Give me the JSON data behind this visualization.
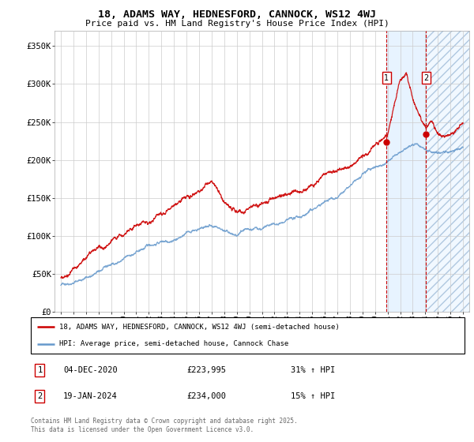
{
  "title_line1": "18, ADAMS WAY, HEDNESFORD, CANNOCK, WS12 4WJ",
  "title_line2": "Price paid vs. HM Land Registry's House Price Index (HPI)",
  "ylabel_ticks": [
    "£0",
    "£50K",
    "£100K",
    "£150K",
    "£200K",
    "£250K",
    "£300K",
    "£350K"
  ],
  "ytick_vals": [
    0,
    50000,
    100000,
    150000,
    200000,
    250000,
    300000,
    350000
  ],
  "ylim": [
    0,
    370000
  ],
  "xlim_start": 1994.5,
  "xlim_end": 2027.5,
  "xtick_years": [
    1995,
    1996,
    1997,
    1998,
    1999,
    2000,
    2001,
    2002,
    2003,
    2004,
    2005,
    2006,
    2007,
    2008,
    2009,
    2010,
    2011,
    2012,
    2013,
    2014,
    2015,
    2016,
    2017,
    2018,
    2019,
    2020,
    2021,
    2022,
    2023,
    2024,
    2025,
    2026,
    2027
  ],
  "sale1_x": 2020.92,
  "sale1_y": 223995,
  "sale2_x": 2024.05,
  "sale2_y": 234000,
  "sale1_date": "04-DEC-2020",
  "sale1_price": "£223,995",
  "sale1_hpi": "31% ↑ HPI",
  "sale2_date": "19-JAN-2024",
  "sale2_price": "£234,000",
  "sale2_hpi": "15% ↑ HPI",
  "legend_line1": "18, ADAMS WAY, HEDNESFORD, CANNOCK, WS12 4WJ (semi-detached house)",
  "legend_line2": "HPI: Average price, semi-detached house, Cannock Chase",
  "footer": "Contains HM Land Registry data © Crown copyright and database right 2025.\nThis data is licensed under the Open Government Licence v3.0.",
  "red_color": "#cc0000",
  "blue_color": "#6699cc",
  "grid_color": "#cccccc"
}
